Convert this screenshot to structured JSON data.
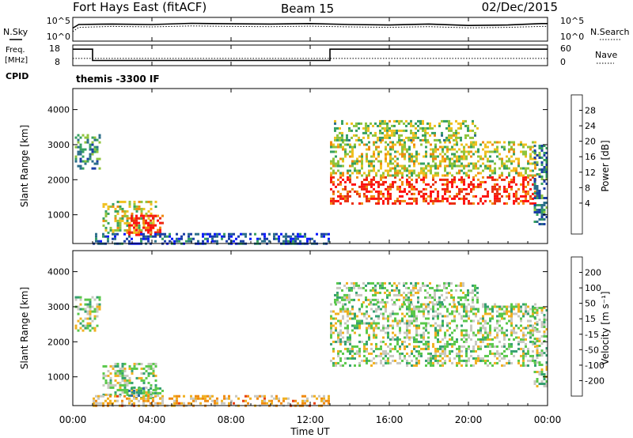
{
  "header": {
    "station": "Fort Hays East (fitACF)",
    "beam": "Beam 15",
    "date": "02/Dec/2015"
  },
  "chart_data": [
    {
      "id": "noise",
      "type": "line",
      "left_label": "N.Sky",
      "right_label": "N.Search",
      "ytick_labels": [
        "10^5",
        "10^0"
      ],
      "series": [
        {
          "style": "solid",
          "x": [
            0,
            0.3,
            2,
            4,
            6,
            8,
            10,
            12,
            14,
            16,
            18,
            20,
            22,
            23.7,
            24
          ],
          "y": [
            0.55,
            0.7,
            0.72,
            0.7,
            0.75,
            0.73,
            0.72,
            0.74,
            0.7,
            0.68,
            0.72,
            0.66,
            0.68,
            0.74,
            0.74
          ]
        },
        {
          "style": "dotted",
          "x": [
            0,
            0.3,
            2,
            4,
            6,
            8,
            10,
            12,
            14,
            16,
            18,
            20,
            22,
            23.7,
            24
          ],
          "y": [
            0.4,
            0.58,
            0.62,
            0.6,
            0.64,
            0.62,
            0.61,
            0.63,
            0.6,
            0.58,
            0.61,
            0.56,
            0.58,
            0.62,
            0.62
          ]
        }
      ]
    },
    {
      "id": "freq",
      "type": "line",
      "left_label_1": "Freq.",
      "left_label_2": "[MHz]",
      "right_label": "Nave",
      "cpid_label": "CPID",
      "cpid_text": "themis -3300 IF",
      "yticks_left": [
        "18",
        "8"
      ],
      "yticks_right": [
        "60",
        "0"
      ],
      "series": [
        {
          "style": "solid",
          "x": [
            0,
            1,
            1,
            13,
            13,
            24
          ],
          "y": [
            16,
            16,
            10.5,
            10.5,
            16,
            16
          ]
        },
        {
          "style": "dotted",
          "x": [
            0,
            24
          ],
          "y": [
            11.5,
            11.5
          ]
        }
      ],
      "ylim": [
        8,
        18
      ]
    },
    {
      "id": "power",
      "type": "heatmap",
      "ylabel": "Slant Range [km]",
      "yticks": [
        1000,
        2000,
        3000,
        4000
      ],
      "ylim": [
        180,
        4600
      ],
      "xlim": [
        0,
        24
      ],
      "colorbar_label": "Power [dB]",
      "colorbar_ticks": [
        "28",
        "24",
        "20",
        "16",
        "12",
        "8",
        "4"
      ],
      "colors": [
        "#0b1aff",
        "#1b3fa6",
        "#2b6e8a",
        "#36a060",
        "#8fc43c",
        "#f0c020",
        "#f08a10",
        "#e83010",
        "#ff1010"
      ],
      "blobs": [
        {
          "t0": 0.1,
          "t1": 1.4,
          "r0": 2300,
          "r1": 3300,
          "level": 0.35
        },
        {
          "t0": 1.5,
          "t1": 4.2,
          "r0": 500,
          "r1": 1400,
          "level": 0.55
        },
        {
          "t0": 2.8,
          "t1": 4.5,
          "r0": 400,
          "r1": 1000,
          "level": 0.9
        },
        {
          "t0": 1.0,
          "t1": 13,
          "r0": 180,
          "r1": 480,
          "level": 0.2
        },
        {
          "t0": 13,
          "t1": 23.4,
          "r0": 1300,
          "r1": 2100,
          "level": 0.85
        },
        {
          "t0": 13,
          "t1": 23.4,
          "r0": 2100,
          "r1": 3100,
          "level": 0.55
        },
        {
          "t0": 13.2,
          "t1": 20.5,
          "r0": 3100,
          "r1": 3700,
          "level": 0.5
        },
        {
          "t0": 23.3,
          "t1": 24,
          "r0": 700,
          "r1": 3000,
          "level": 0.3
        }
      ]
    },
    {
      "id": "velocity",
      "type": "heatmap",
      "ylabel": "Slant Range [km]",
      "yticks": [
        1000,
        2000,
        3000,
        4000
      ],
      "ylim": [
        180,
        4600
      ],
      "xlim": [
        0,
        24
      ],
      "colorbar_label": "Velocity [m s⁻¹]",
      "colorbar_ticks": [
        "200",
        "100",
        "50",
        "15",
        "-15",
        "-50",
        "-100",
        "-200"
      ],
      "colors": [
        "#1b2fb0",
        "#2e66a8",
        "#35a070",
        "#59c84a",
        "#c8c8c0",
        "#f0b020",
        "#f08a10",
        "#e84010",
        "#ff1010"
      ],
      "blobs": [
        {
          "t0": 0.1,
          "t1": 1.4,
          "r0": 2300,
          "r1": 3300,
          "level": 0.45
        },
        {
          "t0": 1.5,
          "t1": 4.2,
          "r0": 500,
          "r1": 1400,
          "level": 0.45
        },
        {
          "t0": 2.8,
          "t1": 4.5,
          "r0": 400,
          "r1": 700,
          "level": 0.3
        },
        {
          "t0": 1.0,
          "t1": 13,
          "r0": 180,
          "r1": 480,
          "level": 0.62
        },
        {
          "t0": 13,
          "t1": 23.4,
          "r0": 1300,
          "r1": 2100,
          "level": 0.45
        },
        {
          "t0": 13,
          "t1": 23.4,
          "r0": 2100,
          "r1": 3100,
          "level": 0.45
        },
        {
          "t0": 13.2,
          "t1": 20.5,
          "r0": 3100,
          "r1": 3700,
          "level": 0.45
        },
        {
          "t0": 23.3,
          "t1": 24,
          "r0": 700,
          "r1": 3000,
          "level": 0.45
        }
      ]
    }
  ],
  "x_axis": {
    "tick_labels": [
      "00:00",
      "04:00",
      "08:00",
      "12:00",
      "16:00",
      "20:00",
      "00:00"
    ],
    "label": "Time UT"
  }
}
